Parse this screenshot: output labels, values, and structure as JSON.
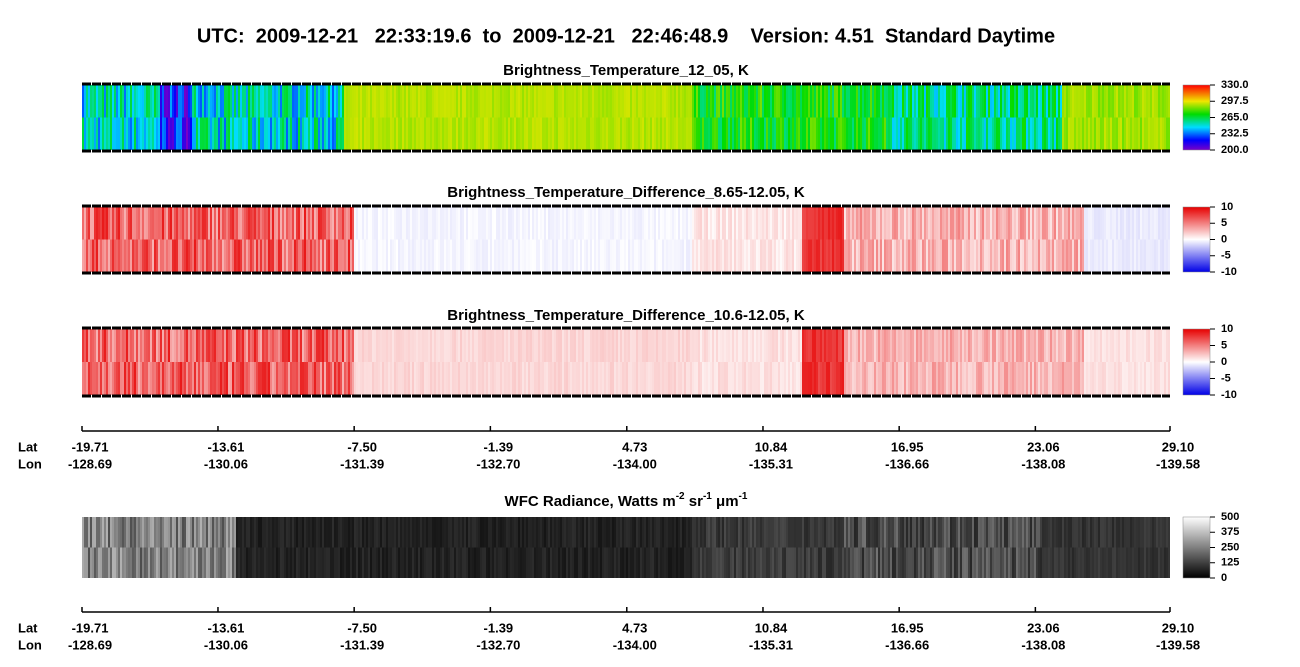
{
  "header": {
    "title": "UTC:  2009-12-21   22:33:19.6  to  2009-12-21   22:46:48.9    Version: 4.51  Standard Daytime"
  },
  "panels": [
    {
      "title": [
        {
          "text": "Brightness_Temperature_12_05, K"
        }
      ],
      "colormap": "jet",
      "colorbar_ticks": [
        {
          "value": 330,
          "label": "330.0"
        },
        {
          "value": 297.5,
          "label": "297.5"
        },
        {
          "value": 265,
          "label": "265.0"
        },
        {
          "value": 232.5,
          "label": "232.5"
        },
        {
          "value": 200,
          "label": "200.0"
        }
      ]
    },
    {
      "title": [
        {
          "text": "Brightness_Temperature_Difference_8.65-12.05, K"
        }
      ],
      "colormap": "red-white-blue",
      "colorbar_ticks": [
        10,
        5,
        0,
        -5,
        -10
      ]
    },
    {
      "title": [
        {
          "text": "Brightness_Temperature_Difference_10.6-12.05, K"
        }
      ],
      "colormap": "red-white-blue",
      "colorbar_ticks": [
        10,
        5,
        0,
        -5,
        -10
      ]
    },
    {
      "title": [
        {
          "text": "WFC Radiance, Watts m"
        },
        {
          "text": "-2",
          "sup": true
        },
        {
          "text": " sr"
        },
        {
          "text": "-1",
          "sup": true
        },
        {
          "text": " μm"
        },
        {
          "text": "-1",
          "sup": true
        }
      ],
      "colormap": "gray",
      "colorbar_ticks": [
        500,
        375,
        250,
        125,
        0
      ]
    }
  ],
  "axes": [
    {
      "lat_label": "Lat",
      "lon_label": "Lon",
      "lat_ticks": [
        -19.71,
        -13.61,
        {
          "value": -7.5,
          "label": "-7.50"
        },
        -1.39,
        4.73,
        10.84,
        16.95,
        23.06,
        {
          "value": 29.1,
          "label": "29.10"
        }
      ],
      "lon_ticks": [
        "-128.69",
        "-130.06",
        "-131.39",
        "-132.70",
        "-134.00",
        "-135.31",
        "-136.66",
        "-138.08",
        "-139.58"
      ]
    },
    {
      "lat_label": "Lat",
      "lon_label": "Lon",
      "lat_ticks": [
        -19.71,
        -13.61,
        {
          "value": -7.5,
          "label": "-7.50"
        },
        -1.39,
        4.73,
        10.84,
        16.95,
        23.06,
        {
          "value": 29.1,
          "label": "29.10"
        }
      ],
      "lon_ticks": [
        "-128.69",
        "-130.06",
        "-131.39",
        "-132.70",
        "-134.00",
        "-135.31",
        "-136.66",
        "-138.08",
        "-139.58"
      ]
    }
  ]
}
